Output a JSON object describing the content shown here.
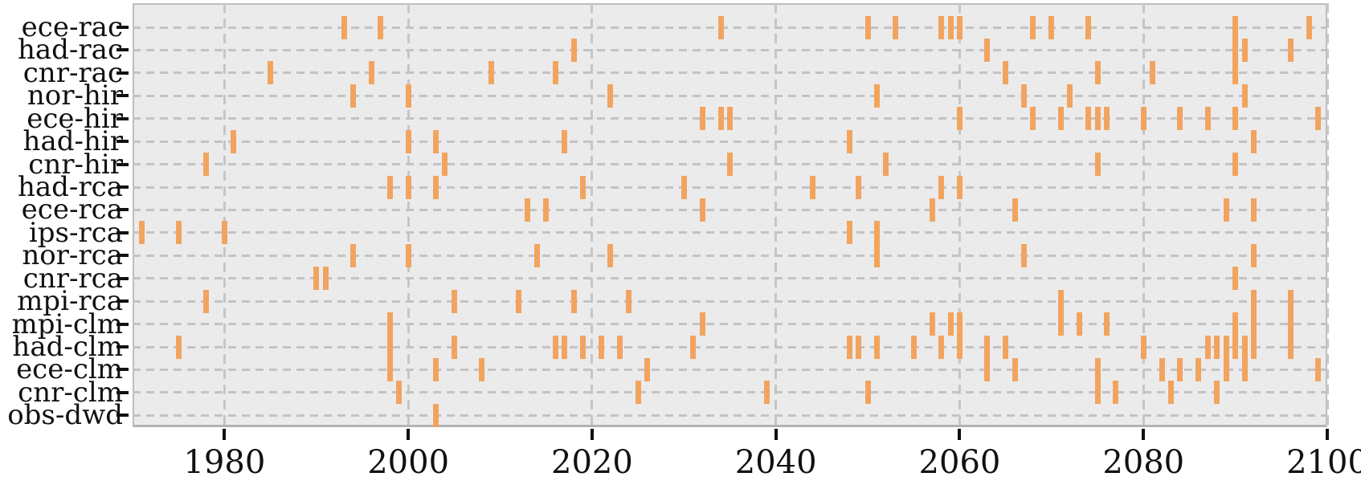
{
  "chart_data": {
    "type": "eventplot",
    "title": "",
    "xlabel": "",
    "ylabel": "",
    "xlim": [
      1970,
      2100
    ],
    "x_ticks": [
      1980,
      2000,
      2020,
      2040,
      2060,
      2080,
      2100
    ],
    "grid": "dashed horizontal line per category row, dashed vertical line per x tick",
    "legend_position": "none",
    "marker_color": "#f2a45f",
    "plot_background": "#ebebeb",
    "gridline_color": "#c5c5c5",
    "series": [
      {
        "label": "ece-rac",
        "years": [
          1993,
          1997,
          2034,
          2050,
          2053,
          2058,
          2059,
          2060,
          2068,
          2070,
          2074,
          2090,
          2098
        ]
      },
      {
        "label": "had-rac",
        "years": [
          2018,
          2063,
          2090,
          2091,
          2096
        ]
      },
      {
        "label": "cnr-rac",
        "years": [
          1985,
          1996,
          2009,
          2016,
          2065,
          2075,
          2081,
          2090
        ]
      },
      {
        "label": "nor-hir",
        "years": [
          1994,
          2000,
          2022,
          2051,
          2067,
          2072,
          2091
        ]
      },
      {
        "label": "ece-hir",
        "years": [
          2032,
          2034,
          2035,
          2060,
          2068,
          2071,
          2074,
          2075,
          2076,
          2080,
          2084,
          2087,
          2090,
          2099
        ]
      },
      {
        "label": "had-hir",
        "years": [
          1981,
          2000,
          2003,
          2017,
          2048,
          2092
        ]
      },
      {
        "label": "cnr-hir",
        "years": [
          1978,
          2004,
          2035,
          2052,
          2075,
          2090
        ]
      },
      {
        "label": "had-rca",
        "years": [
          1998,
          2000,
          2003,
          2019,
          2030,
          2044,
          2049,
          2058,
          2060
        ]
      },
      {
        "label": "ece-rca",
        "years": [
          2013,
          2015,
          2032,
          2057,
          2066,
          2089,
          2092
        ]
      },
      {
        "label": "ips-rca",
        "years": [
          1971,
          1975,
          1980,
          2048,
          2051
        ]
      },
      {
        "label": "nor-rca",
        "years": [
          1994,
          2000,
          2014,
          2022,
          2051,
          2067,
          2092
        ]
      },
      {
        "label": "cnr-rca",
        "years": [
          1990,
          1991,
          2090
        ]
      },
      {
        "label": "mpi-rca",
        "years": [
          1978,
          2005,
          2012,
          2018,
          2024,
          2071,
          2092,
          2096
        ]
      },
      {
        "label": "mpi-clm",
        "years": [
          1998,
          2032,
          2057,
          2059,
          2060,
          2071,
          2073,
          2076,
          2090,
          2092,
          2096
        ]
      },
      {
        "label": "had-clm",
        "years": [
          1975,
          1998,
          2005,
          2016,
          2017,
          2019,
          2021,
          2023,
          2031,
          2048,
          2049,
          2051,
          2055,
          2058,
          2060,
          2063,
          2065,
          2080,
          2087,
          2088,
          2089,
          2090,
          2091,
          2092,
          2096
        ]
      },
      {
        "label": "ece-clm",
        "years": [
          1998,
          2003,
          2008,
          2026,
          2063,
          2066,
          2075,
          2082,
          2084,
          2086,
          2089,
          2091,
          2099
        ]
      },
      {
        "label": "cnr-clm",
        "years": [
          1999,
          2025,
          2039,
          2050,
          2075,
          2077,
          2083,
          2088
        ]
      },
      {
        "label": "obs-dwd",
        "years": [
          2003
        ]
      }
    ]
  }
}
